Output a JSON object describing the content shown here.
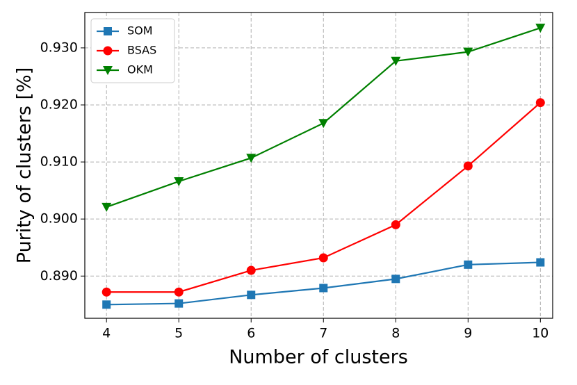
{
  "chart_data": {
    "type": "line",
    "xlabel": "Number of clusters",
    "ylabel": "Purity of clusters [%]",
    "x": [
      4,
      5,
      6,
      7,
      8,
      9,
      10
    ],
    "series": [
      {
        "name": "SOM",
        "color": "#1f77b4",
        "marker": "square",
        "values": [
          0.885,
          0.8852,
          0.8867,
          0.8879,
          0.8895,
          0.892,
          0.8924
        ]
      },
      {
        "name": "BSAS",
        "color": "#ff0000",
        "marker": "circle",
        "values": [
          0.8872,
          0.8872,
          0.891,
          0.8932,
          0.899,
          0.9093,
          0.9204
        ]
      },
      {
        "name": "OKM",
        "color": "#008000",
        "marker": "triangle-down",
        "values": [
          0.9021,
          0.9066,
          0.9107,
          0.9168,
          0.9277,
          0.9293,
          0.9335
        ]
      }
    ],
    "xlim": [
      3.7,
      10.17
    ],
    "xticks": [
      4,
      5,
      6,
      7,
      8,
      9,
      10
    ],
    "ylim": [
      0.8826,
      0.9362
    ],
    "yticks": [
      {
        "value": 0.89,
        "label": "0.890"
      },
      {
        "value": 0.9,
        "label": "0.900"
      },
      {
        "value": 0.91,
        "label": "0.910"
      },
      {
        "value": 0.92,
        "label": "0.920"
      },
      {
        "value": 0.93,
        "label": "0.930"
      }
    ],
    "grid": true,
    "legend": "upper-left"
  }
}
